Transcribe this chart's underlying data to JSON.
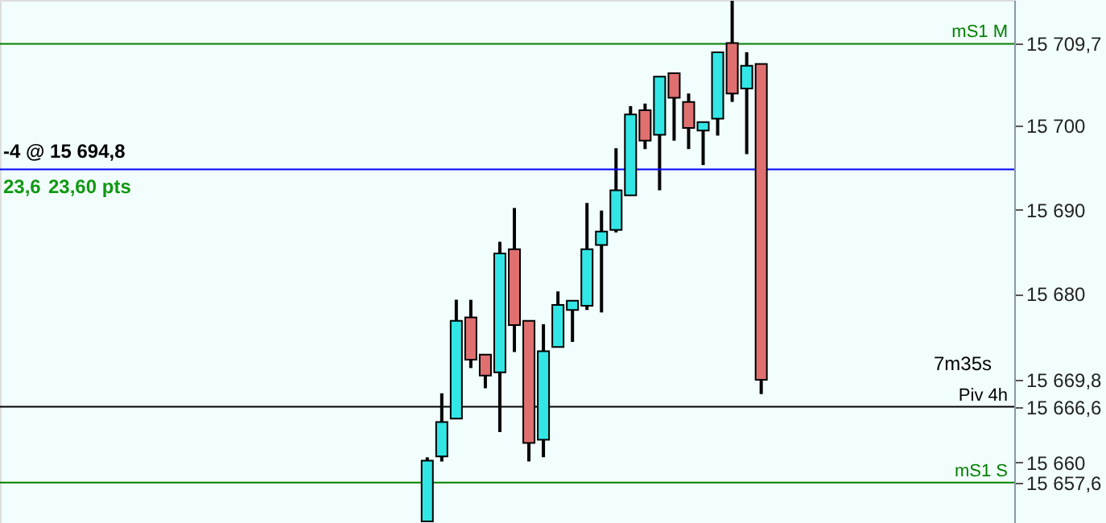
{
  "chart_data": {
    "type": "candlestick",
    "categories": [
      null,
      null,
      null,
      null,
      null,
      null,
      null,
      null,
      null,
      null,
      null,
      null,
      null,
      null,
      null,
      null,
      null,
      null,
      null,
      null,
      null,
      null,
      null,
      null,
      null,
      null,
      null,
      null,
      null,
      null,
      null,
      null,
      null,
      null,
      null,
      null,
      null,
      null,
      null,
      null,
      null,
      null,
      null,
      null,
      null,
      null,
      null,
      null,
      null,
      null,
      null,
      null,
      null,
      null,
      null,
      null,
      null,
      null,
      null,
      null,
      null,
      null,
      null,
      null,
      null,
      null,
      null,
      null,
      null,
      null
    ],
    "ohlc": [
      null,
      null,
      null,
      null,
      null,
      null,
      null,
      null,
      null,
      null,
      null,
      null,
      null,
      null,
      null,
      null,
      null,
      null,
      null,
      null,
      null,
      null,
      null,
      null,
      null,
      null,
      null,
      null,
      null,
      [
        15653.0,
        15660.6,
        15653.0,
        15660.2
      ],
      [
        15660.7,
        15668.2,
        15660.1,
        15664.8
      ],
      [
        15665.2,
        15679.3,
        15665.2,
        15676.8
      ],
      [
        15677.2,
        15679.3,
        15671.2,
        15672.2
      ],
      [
        15672.8,
        15672.8,
        15668.8,
        15670.3
      ],
      [
        15670.7,
        15686.2,
        15663.6,
        15684.8
      ],
      [
        15685.3,
        15690.2,
        15673.1,
        15676.3
      ],
      [
        15676.8,
        15676.8,
        15660.1,
        15662.3
      ],
      [
        15662.7,
        15676.4,
        15660.6,
        15673.2
      ],
      [
        15673.7,
        15680.3,
        15673.7,
        15678.7
      ],
      [
        15678.1,
        15679.2,
        15674.3,
        15679.2
      ],
      [
        15678.6,
        15690.8,
        15678.1,
        15685.3
      ],
      [
        15685.8,
        15689.9,
        15677.8,
        15687.4
      ],
      [
        15687.6,
        15697.3,
        15687.3,
        15692.3
      ],
      [
        15691.7,
        15702.3,
        15691.7,
        15701.3
      ],
      [
        15701.8,
        15702.6,
        15697.2,
        15698.2
      ],
      [
        15698.9,
        15705.8,
        15692.3,
        15705.8
      ],
      [
        15706.2,
        15706.2,
        15698.2,
        15703.3
      ],
      [
        15702.8,
        15703.8,
        15697.2,
        15699.7
      ],
      [
        15699.4,
        15700.4,
        15695.3,
        15700.4
      ],
      [
        15700.8,
        15708.7,
        15698.8,
        15708.7
      ],
      [
        15709.8,
        15714.8,
        15702.8,
        15703.8
      ],
      [
        15704.4,
        15708.7,
        15696.6,
        15707.1
      ],
      [
        15707.3,
        15707.3,
        15668.1,
        15669.8
      ],
      null,
      null,
      null,
      null,
      null,
      null,
      null,
      null,
      null,
      null,
      null,
      null,
      null,
      null,
      null,
      null,
      null
    ],
    "colors": [
      null,
      null,
      null,
      null,
      null,
      null,
      null,
      null,
      null,
      null,
      null,
      null,
      null,
      null,
      null,
      null,
      null,
      null,
      null,
      null,
      null,
      null,
      null,
      null,
      null,
      null,
      null,
      null,
      null,
      "#33e6e6",
      "#33e6e6",
      "#33e6e6",
      "#e07070",
      "#e07070",
      "#33e6e6",
      "#e07070",
      "#e07070",
      "#33e6e6",
      "#33e6e6",
      "#33e6e6",
      "#33e6e6",
      "#33e6e6",
      "#33e6e6",
      "#33e6e6",
      "#e07070",
      "#33e6e6",
      "#e07070",
      "#e07070",
      "#33e6e6",
      "#33e6e6",
      "#e07070",
      "#33e6e6",
      "#e07070",
      null,
      null,
      null,
      null,
      null,
      null,
      null,
      null,
      null,
      null,
      null,
      null,
      null,
      null,
      null,
      null,
      null
    ],
    "ref_lines": [
      {
        "axis": "y",
        "value": 15666.6,
        "label": "Piv 4h",
        "color": "#000000"
      },
      {
        "axis": "y",
        "value": 15709.7,
        "label": "mS1 M",
        "color": "#008000"
      },
      {
        "axis": "y",
        "value": 15657.6,
        "label": "mS1 S",
        "color": "#008000"
      },
      {
        "axis": "y",
        "value": 15694.8,
        "color": "#0000ff"
      }
    ],
    "annotations": [
      "-4 @ 15 694,8",
      "23,6",
      "23,60 pts",
      "7m35s"
    ],
    "ylim": [
      15652.8,
      15714.9
    ],
    "yticks": [
      {
        "value": 15657.6,
        "label": "15 657,6"
      },
      {
        "value": 15660,
        "label": "15 660"
      },
      {
        "value": 15666.6,
        "label": "15 666,6"
      },
      {
        "value": 15669.8,
        "label": "15 669,8"
      },
      {
        "value": 15680,
        "label": "15 680"
      },
      {
        "value": 15690,
        "label": "15 690"
      },
      {
        "value": 15700,
        "label": "15 700"
      },
      {
        "value": 15709.7,
        "label": "15 709,7"
      }
    ],
    "tick_labels": "y",
    "grid": false
  }
}
